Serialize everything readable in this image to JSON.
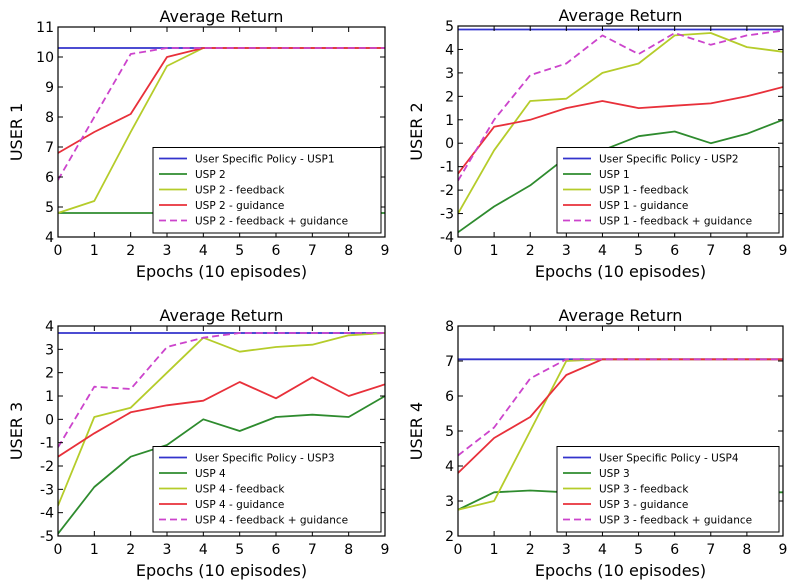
{
  "chart_data": [
    {
      "type": "line",
      "title": "Average Return",
      "xlabel": "Epochs (10 episodes)",
      "ylabel": "USER 1",
      "xlim": [
        0,
        9
      ],
      "ylim": [
        4,
        11
      ],
      "xticks": [
        "0",
        "1",
        "2",
        "3",
        "4",
        "5",
        "6",
        "7",
        "8",
        "9"
      ],
      "yticks": [
        "4",
        "5",
        "6",
        "7",
        "8",
        "9",
        "10",
        "11"
      ],
      "legend_position": "lower-right",
      "x": [
        0,
        1,
        2,
        3,
        4,
        5,
        6,
        7,
        8,
        9
      ],
      "series": [
        {
          "name": "User Specific Policy - USP1",
          "color": "#3333cc",
          "dashed": false,
          "values": [
            10.3,
            10.3,
            10.3,
            10.3,
            10.3,
            10.3,
            10.3,
            10.3,
            10.3,
            10.3
          ]
        },
        {
          "name": "USP 2",
          "color": "#2e8b2e",
          "dashed": false,
          "values": [
            4.8,
            4.8,
            4.8,
            4.8,
            4.8,
            4.8,
            4.8,
            4.8,
            4.8,
            4.8
          ]
        },
        {
          "name": "USP 2 - feedback",
          "color": "#b5cc2a",
          "dashed": false,
          "values": [
            4.8,
            5.2,
            7.5,
            9.7,
            10.3,
            10.3,
            10.3,
            10.3,
            10.3,
            10.3
          ]
        },
        {
          "name": "USP 2 - guidance",
          "color": "#e8303a",
          "dashed": false,
          "values": [
            6.8,
            7.5,
            8.1,
            10.0,
            10.3,
            10.3,
            10.3,
            10.3,
            10.3,
            10.3
          ]
        },
        {
          "name": "USP 2 - feedback + guidance",
          "color": "#cc44cc",
          "dashed": true,
          "values": [
            5.9,
            8.0,
            10.1,
            10.3,
            10.3,
            10.3,
            10.3,
            10.3,
            10.3,
            10.3
          ]
        }
      ]
    },
    {
      "type": "line",
      "title": "Average Return",
      "xlabel": "Epochs (10 episodes)",
      "ylabel": "USER 2",
      "xlim": [
        0,
        9
      ],
      "ylim": [
        -4,
        5
      ],
      "xticks": [
        "0",
        "1",
        "2",
        "3",
        "4",
        "5",
        "6",
        "7",
        "8",
        "9"
      ],
      "yticks": [
        "-4",
        "-3",
        "-2",
        "-1",
        "0",
        "1",
        "2",
        "3",
        "4",
        "5"
      ],
      "legend_position": "lower-right",
      "x": [
        0,
        1,
        2,
        3,
        4,
        5,
        6,
        7,
        8,
        9
      ],
      "series": [
        {
          "name": "User Specific Policy - USP2",
          "color": "#3333cc",
          "dashed": false,
          "values": [
            4.85,
            4.85,
            4.85,
            4.85,
            4.85,
            4.85,
            4.85,
            4.85,
            4.85,
            4.85
          ]
        },
        {
          "name": "USP 1",
          "color": "#2e8b2e",
          "dashed": false,
          "values": [
            -3.8,
            -2.7,
            -1.8,
            -0.6,
            -0.3,
            0.3,
            0.5,
            0.0,
            0.4,
            1.0
          ]
        },
        {
          "name": "USP 1 - feedback",
          "color": "#b5cc2a",
          "dashed": false,
          "values": [
            -3.0,
            -0.3,
            1.8,
            1.9,
            3.0,
            3.4,
            4.6,
            4.7,
            4.1,
            3.9
          ]
        },
        {
          "name": "USP 1 - guidance",
          "color": "#e8303a",
          "dashed": false,
          "values": [
            -1.3,
            0.7,
            1.0,
            1.5,
            1.8,
            1.5,
            1.6,
            1.7,
            2.0,
            2.4
          ]
        },
        {
          "name": "USP 1 - feedback + guidance",
          "color": "#cc44cc",
          "dashed": true,
          "values": [
            -1.6,
            1.0,
            2.9,
            3.4,
            4.6,
            3.8,
            4.7,
            4.2,
            4.6,
            4.8
          ]
        }
      ]
    },
    {
      "type": "line",
      "title": "Average Return",
      "xlabel": "Epochs (10 episodes)",
      "ylabel": "USER 3",
      "xlim": [
        0,
        9
      ],
      "ylim": [
        -5,
        4
      ],
      "xticks": [
        "0",
        "1",
        "2",
        "3",
        "4",
        "5",
        "6",
        "7",
        "8",
        "9"
      ],
      "yticks": [
        "-5",
        "-4",
        "-3",
        "-2",
        "-1",
        "0",
        "1",
        "2",
        "3",
        "4"
      ],
      "legend_position": "lower-right",
      "x": [
        0,
        1,
        2,
        3,
        4,
        5,
        6,
        7,
        8,
        9
      ],
      "series": [
        {
          "name": "User Specific Policy - USP3",
          "color": "#3333cc",
          "dashed": false,
          "values": [
            3.7,
            3.7,
            3.7,
            3.7,
            3.7,
            3.7,
            3.7,
            3.7,
            3.7,
            3.7
          ]
        },
        {
          "name": "USP 4",
          "color": "#2e8b2e",
          "dashed": false,
          "values": [
            -4.9,
            -2.9,
            -1.6,
            -1.1,
            0.0,
            -0.5,
            0.1,
            0.2,
            0.1,
            1.0
          ]
        },
        {
          "name": "USP 4 - feedback",
          "color": "#b5cc2a",
          "dashed": false,
          "values": [
            -3.7,
            0.1,
            0.5,
            2.0,
            3.5,
            2.9,
            3.1,
            3.2,
            3.6,
            3.7
          ]
        },
        {
          "name": "USP 4 - guidance",
          "color": "#e8303a",
          "dashed": false,
          "values": [
            -1.6,
            -0.6,
            0.3,
            0.6,
            0.8,
            1.6,
            0.9,
            1.8,
            1.0,
            1.5
          ]
        },
        {
          "name": "USP 4 - feedback + guidance",
          "color": "#cc44cc",
          "dashed": true,
          "values": [
            -1.2,
            1.4,
            1.3,
            3.1,
            3.5,
            3.7,
            3.7,
            3.7,
            3.7,
            3.7
          ]
        }
      ]
    },
    {
      "type": "line",
      "title": "Average Return",
      "xlabel": "Epochs (10 episodes)",
      "ylabel": "USER 4",
      "xlim": [
        0,
        9
      ],
      "ylim": [
        2,
        8
      ],
      "xticks": [
        "0",
        "1",
        "2",
        "3",
        "4",
        "5",
        "6",
        "7",
        "8",
        "9"
      ],
      "yticks": [
        "2",
        "3",
        "4",
        "5",
        "6",
        "7",
        "8"
      ],
      "legend_position": "lower-right",
      "x": [
        0,
        1,
        2,
        3,
        4,
        5,
        6,
        7,
        8,
        9
      ],
      "series": [
        {
          "name": "User Specific Policy - USP4",
          "color": "#3333cc",
          "dashed": false,
          "values": [
            7.05,
            7.05,
            7.05,
            7.05,
            7.05,
            7.05,
            7.05,
            7.05,
            7.05,
            7.05
          ]
        },
        {
          "name": "USP 3",
          "color": "#2e8b2e",
          "dashed": false,
          "values": [
            2.75,
            3.25,
            3.3,
            3.25,
            3.25,
            3.25,
            3.25,
            3.25,
            3.25,
            3.25
          ]
        },
        {
          "name": "USP 3 - feedback",
          "color": "#b5cc2a",
          "dashed": false,
          "values": [
            2.75,
            3.0,
            5.0,
            7.0,
            7.05,
            7.05,
            7.05,
            7.05,
            7.05,
            7.05
          ]
        },
        {
          "name": "USP 3 - guidance",
          "color": "#e8303a",
          "dashed": false,
          "values": [
            3.8,
            4.8,
            5.4,
            6.6,
            7.05,
            7.05,
            7.05,
            7.05,
            7.05,
            7.05
          ]
        },
        {
          "name": "USP 3 - feedback + guidance",
          "color": "#cc44cc",
          "dashed": true,
          "values": [
            4.3,
            5.1,
            6.5,
            7.05,
            7.05,
            7.05,
            7.05,
            7.05,
            7.05,
            7.05
          ]
        }
      ]
    }
  ]
}
